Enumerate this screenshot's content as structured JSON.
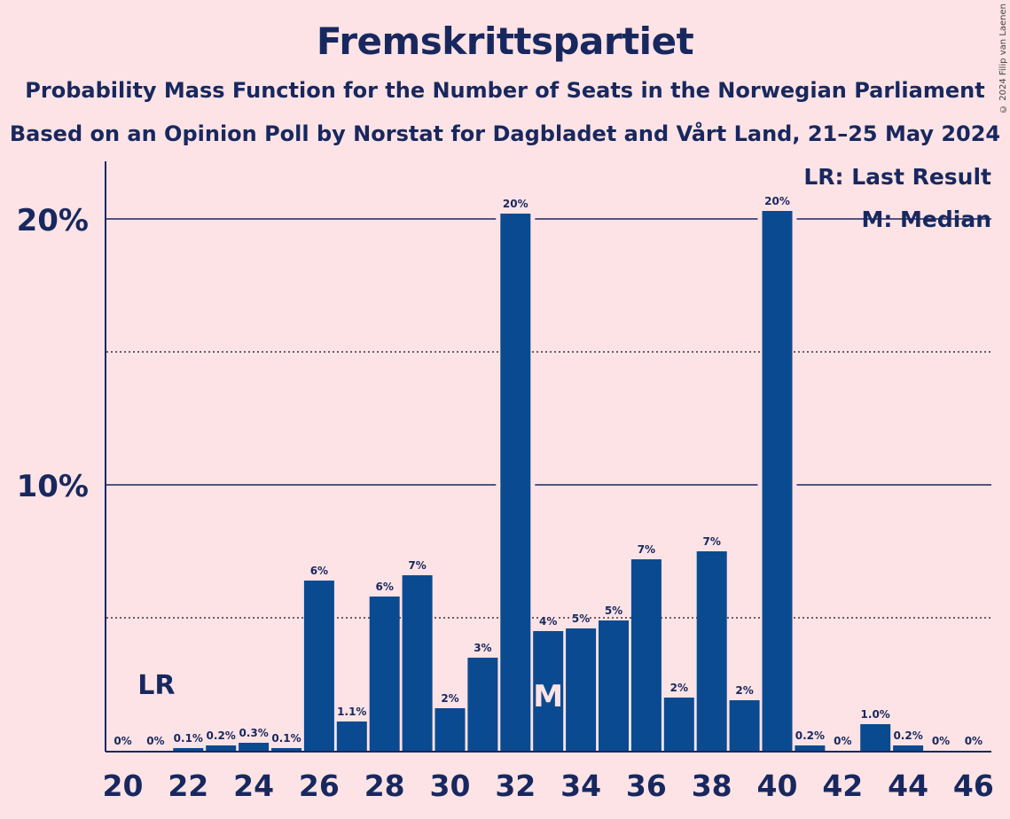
{
  "title": "Fremskrittspartiet",
  "subtitle1": "Probability Mass Function for the Number of Seats in the Norwegian Parliament",
  "subtitle2": "Based on an Opinion Poll by Norstat for Dagbladet and Vårt Land, 21–25 May 2024",
  "copyright": "© 2024 Filip van Laenen",
  "legend": {
    "last_result": "LR: Last Result",
    "median": "M: Median"
  },
  "markers": {
    "last_result_label": "LR",
    "last_result_seat": 21,
    "median_label": "M",
    "median_seat": 33
  },
  "colors": {
    "background": "#fde3e5",
    "bar": "#0a4a91",
    "text": "#18285f"
  },
  "chart_data": {
    "type": "bar",
    "x": [
      20,
      21,
      22,
      23,
      24,
      25,
      26,
      27,
      28,
      29,
      30,
      31,
      32,
      33,
      34,
      35,
      36,
      37,
      38,
      39,
      40,
      41,
      42,
      43,
      44,
      45,
      46
    ],
    "values": [
      0,
      0,
      0.1,
      0.2,
      0.3,
      0.1,
      6.4,
      1.1,
      5.8,
      6.6,
      1.6,
      3.5,
      20.2,
      4.5,
      4.6,
      4.9,
      7.2,
      2.0,
      7.5,
      1.9,
      20.3,
      0.2,
      0,
      1.0,
      0.2,
      0,
      0
    ],
    "labels": [
      "0%",
      "0%",
      "0.1%",
      "0.2%",
      "0.3%",
      "0.1%",
      "6%",
      "1.1%",
      "6%",
      "7%",
      "2%",
      "3%",
      "20%",
      "4%",
      "5%",
      "5%",
      "7%",
      "2%",
      "7%",
      "2%",
      "20%",
      "0.2%",
      "0%",
      "1.0%",
      "0.2%",
      "0%",
      "0%"
    ],
    "x_tick_labels": [
      "20",
      "22",
      "24",
      "26",
      "28",
      "30",
      "32",
      "34",
      "36",
      "38",
      "40",
      "42",
      "44",
      "46"
    ],
    "y_tick_labels": [
      "10%",
      "20%"
    ],
    "ylim": [
      0,
      22
    ],
    "grid": "solid at 10% and 20%, dotted at 5% and 15%",
    "xlabel": "",
    "ylabel": ""
  }
}
